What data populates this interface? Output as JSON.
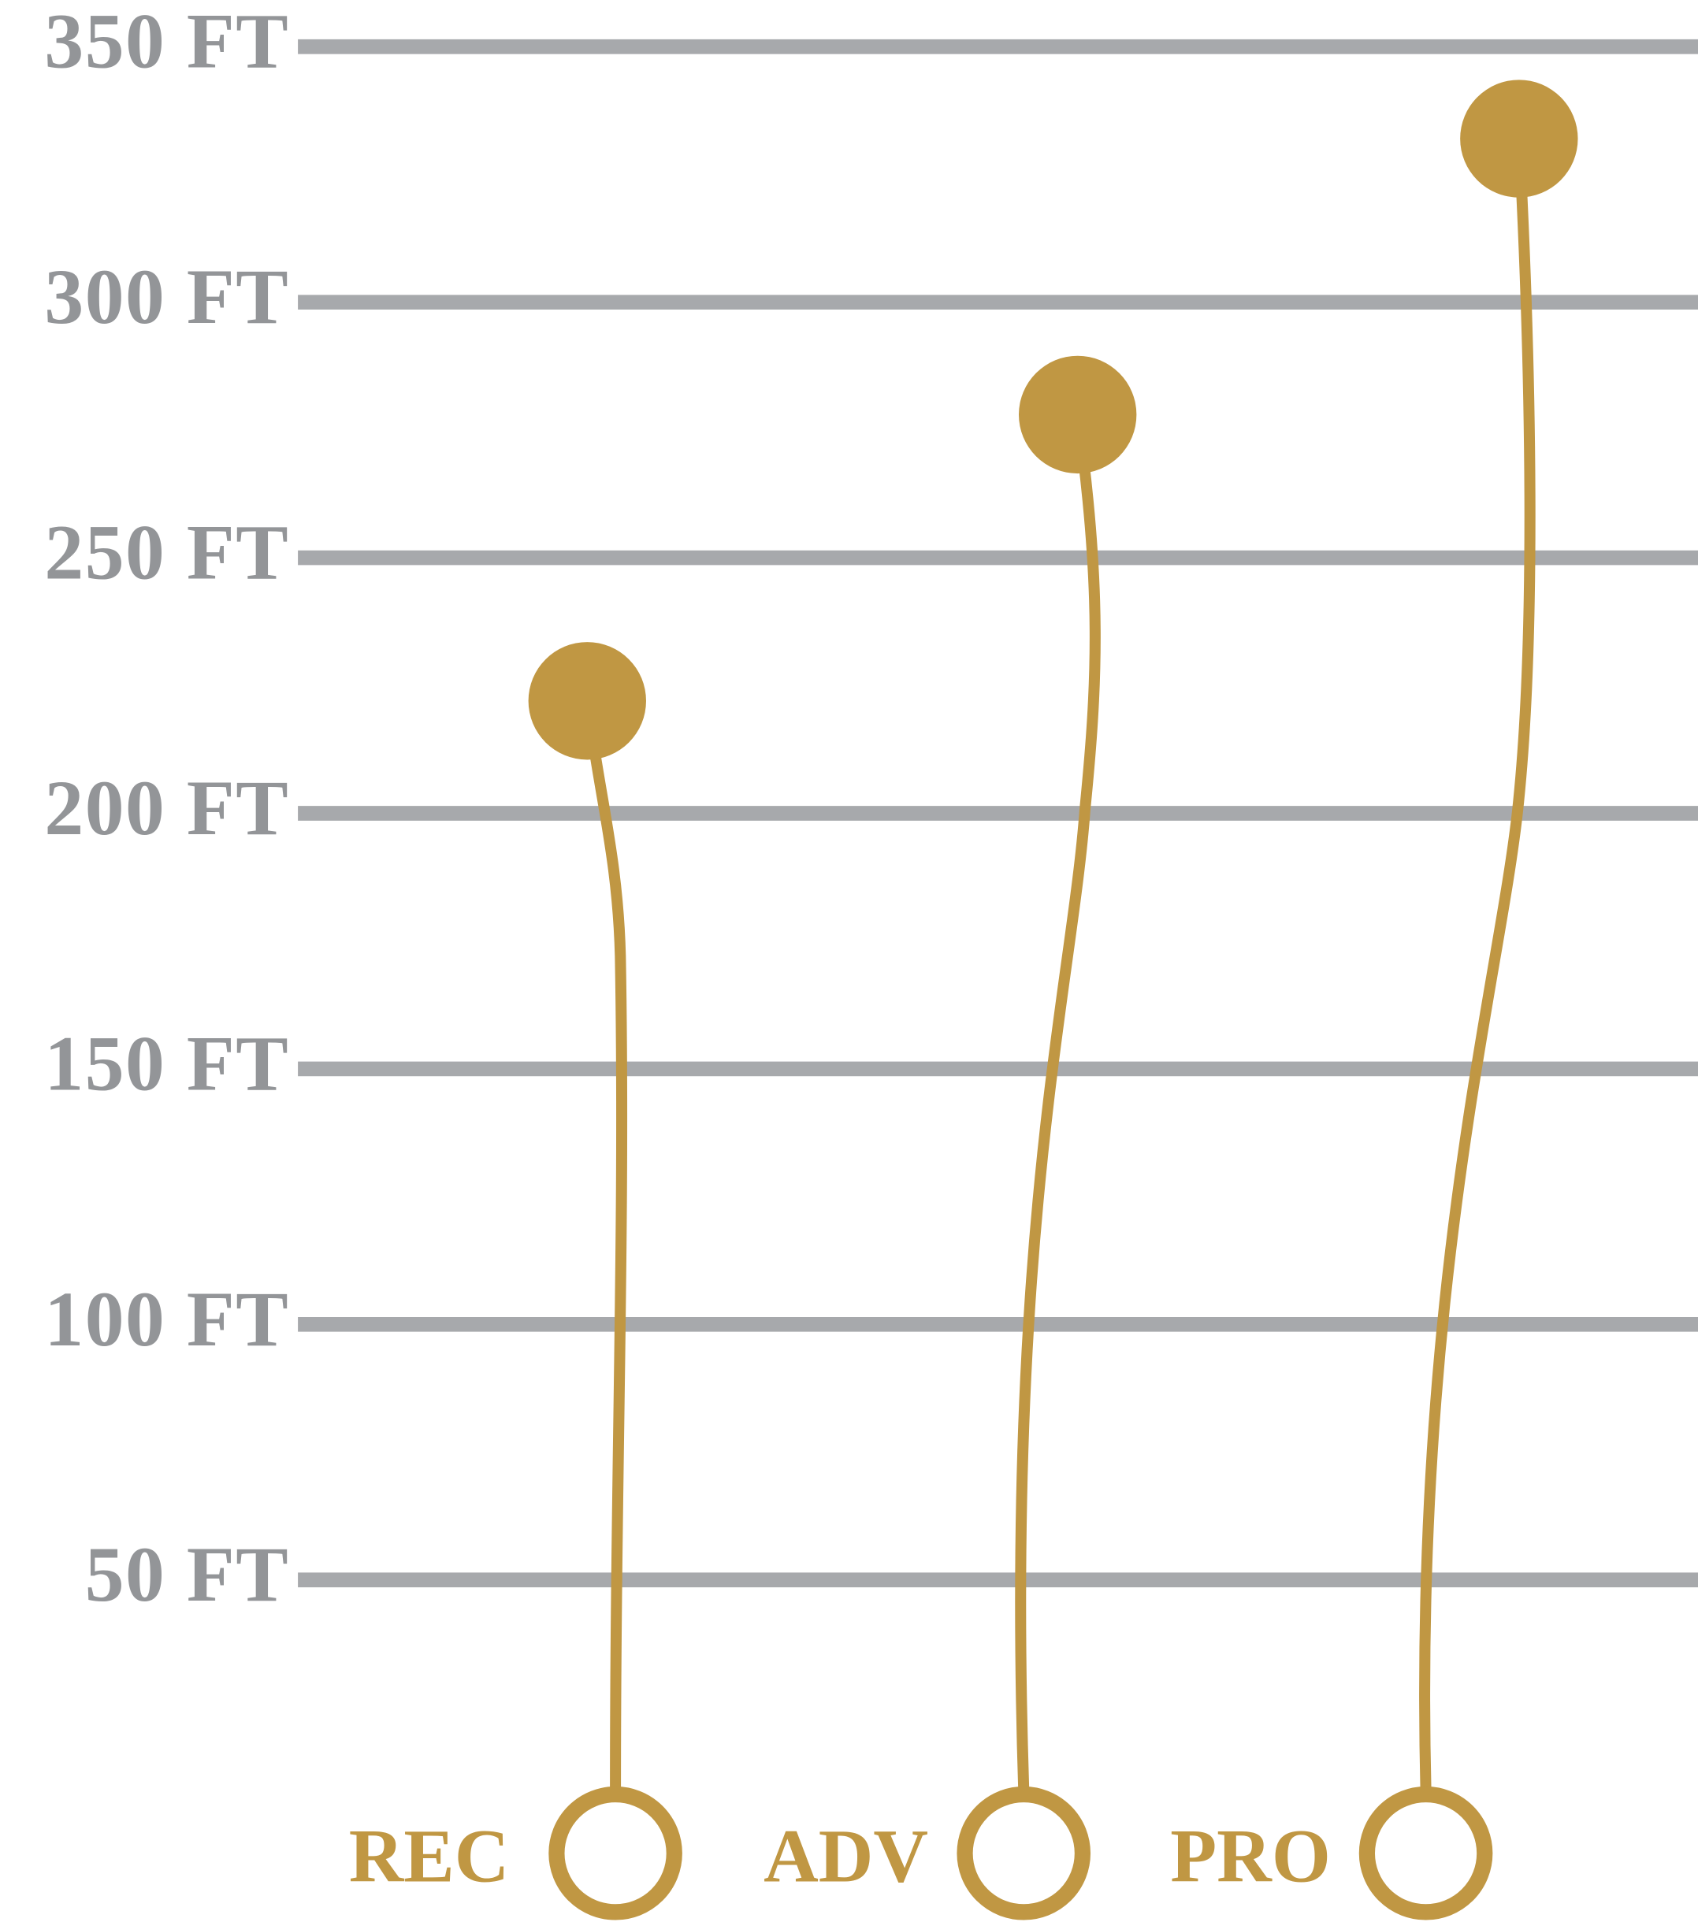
{
  "chart_data": {
    "type": "lollipop",
    "title": "",
    "xlabel": "",
    "ylabel": "",
    "ylim": [
      0,
      350
    ],
    "y_ticks": [
      50,
      100,
      150,
      200,
      250,
      300,
      350
    ],
    "y_tick_labels": [
      "50 FT",
      "100 FT",
      "150 FT",
      "200 FT",
      "250 FT",
      "300 FT",
      "350 FT"
    ],
    "grid": true,
    "categories": [
      "REC",
      "ADV",
      "PRO"
    ],
    "values": [
      222,
      278,
      332
    ],
    "colors": {
      "grid": "#a7a9ac",
      "tick_text": "#939598",
      "series": "#c09743"
    }
  }
}
